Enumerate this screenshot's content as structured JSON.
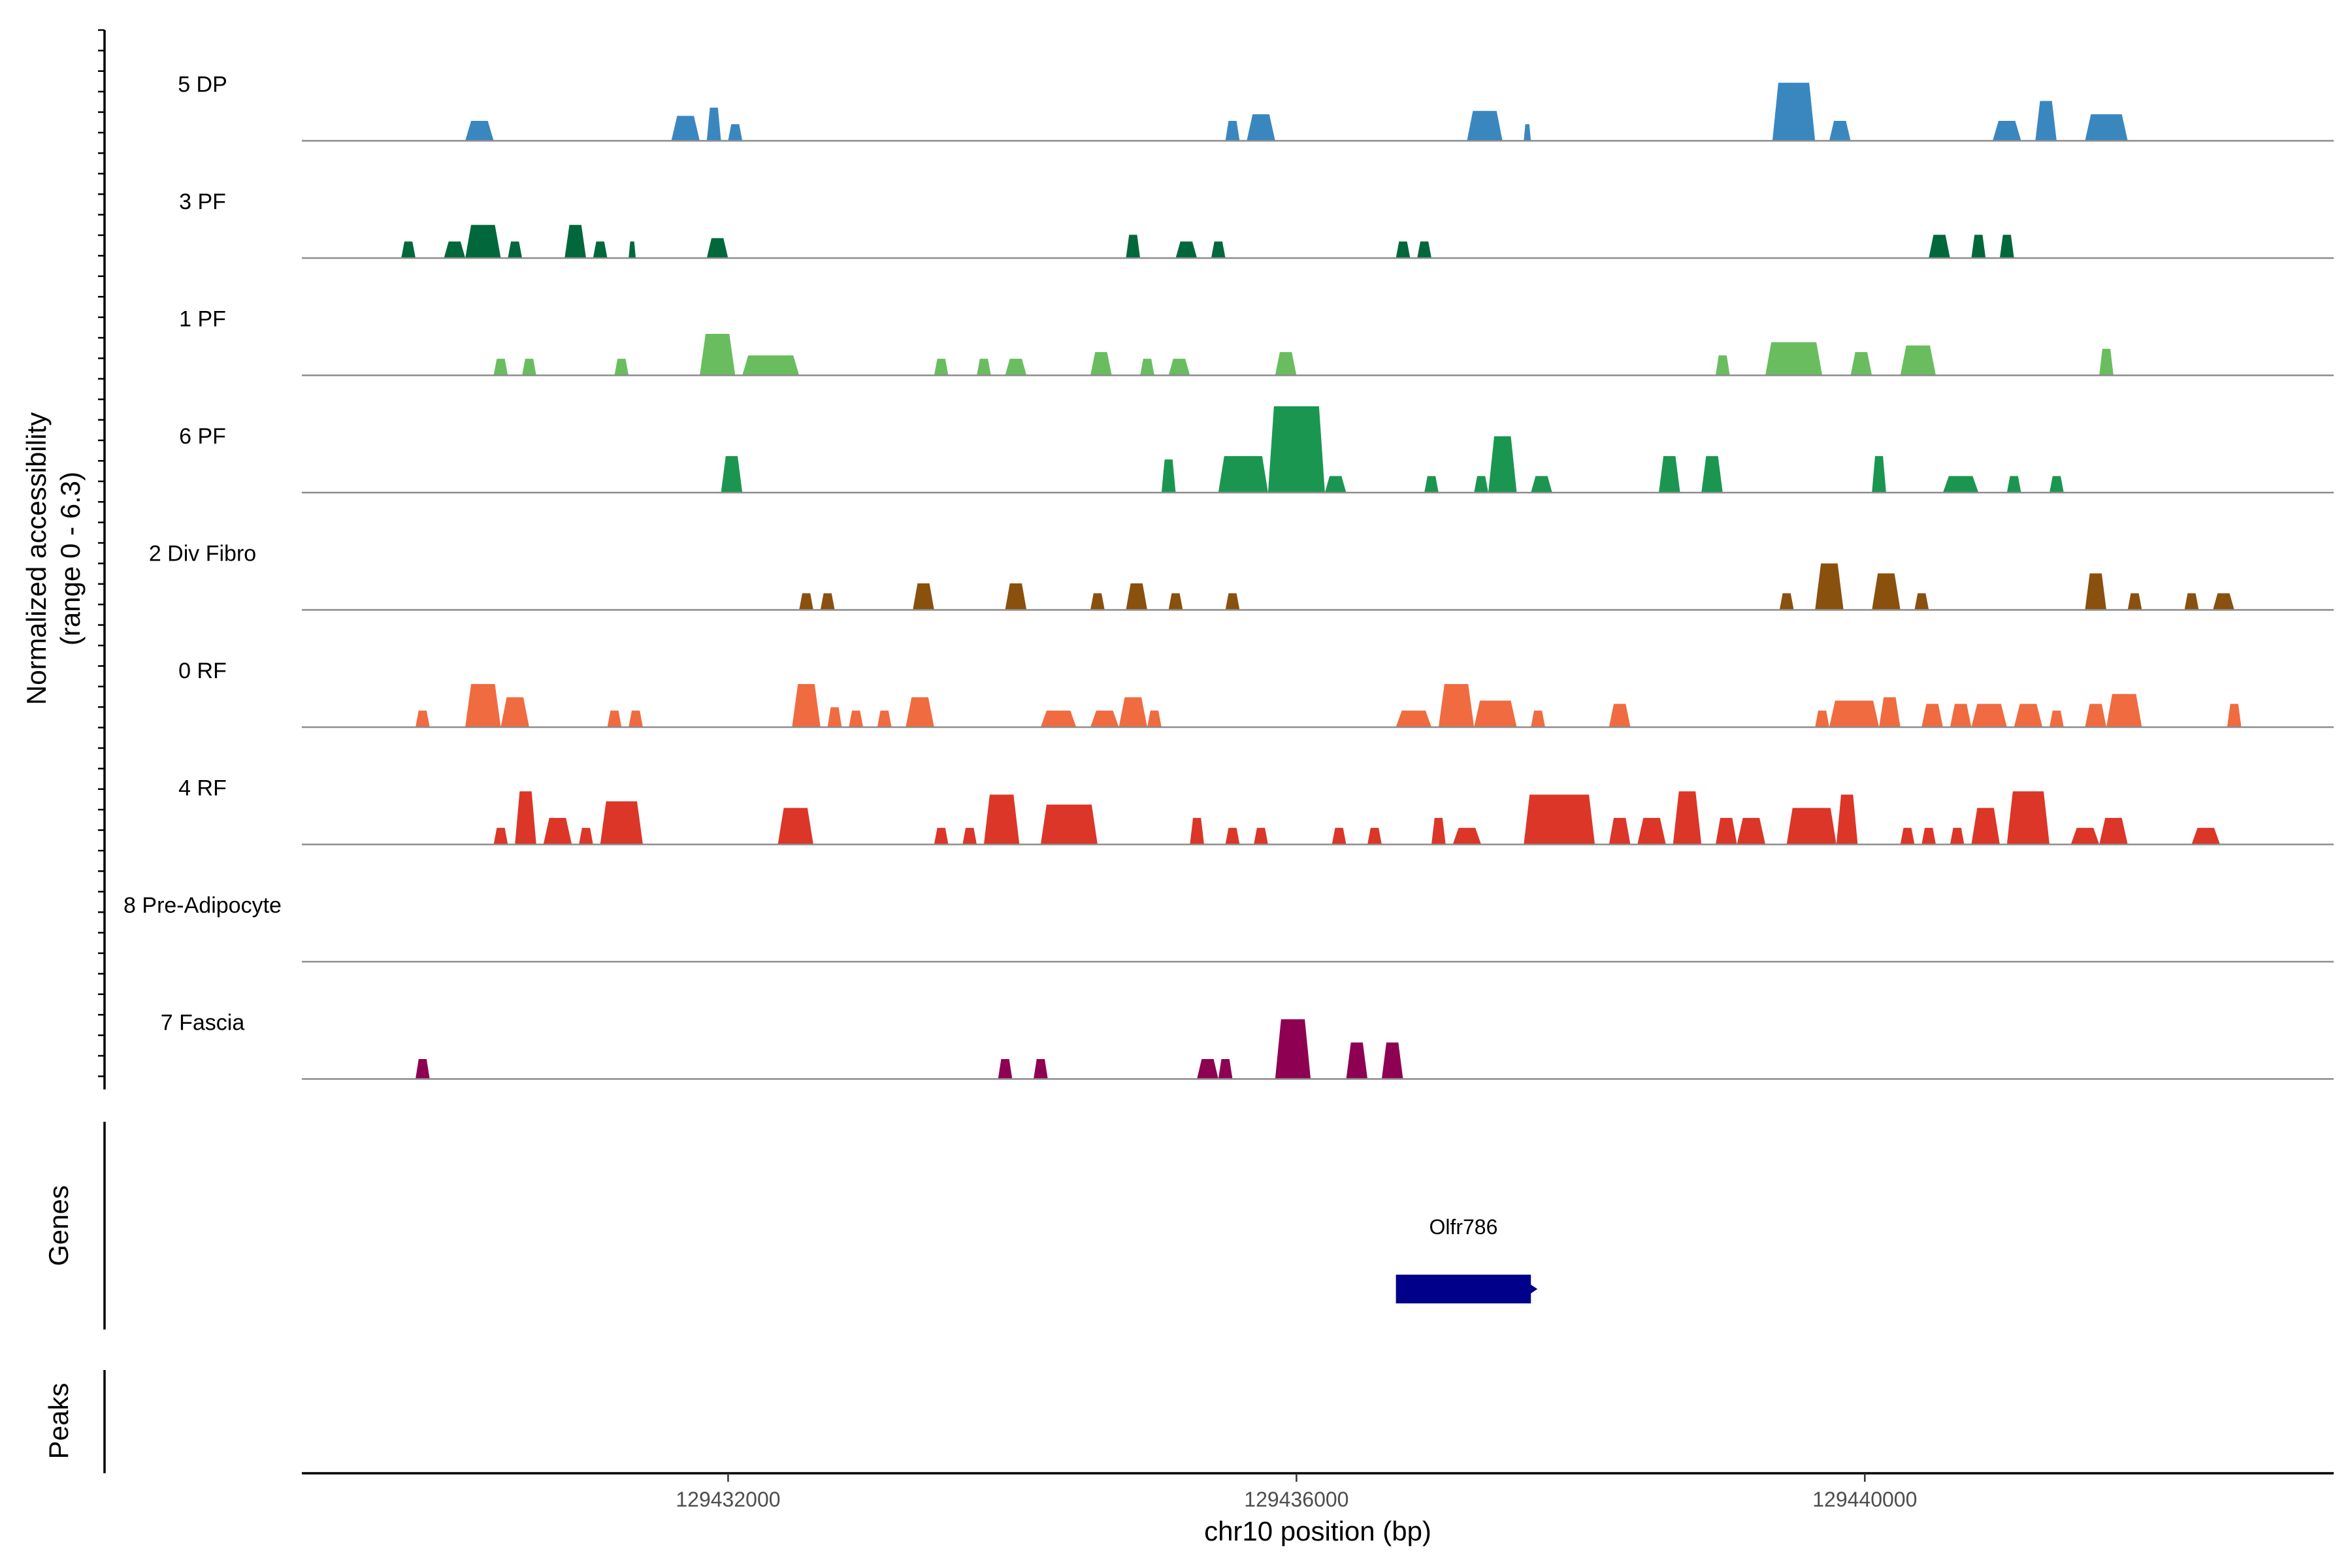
{
  "chart_data": {
    "type": "coverage",
    "title": "",
    "ylabel_line1": "Normalized accessibility",
    "ylabel_line2": "(range 0 - 6.3)",
    "y_range": [
      0,
      6.3
    ],
    "genes_label": "Genes",
    "peaks_label": "Peaks",
    "xlabel": "chr10 position (bp)",
    "x_range": [
      129429000,
      129443300
    ],
    "x_ticks": [
      {
        "value": 129432000,
        "label": "129432000"
      },
      {
        "value": 129436000,
        "label": "129436000"
      },
      {
        "value": 129440000,
        "label": "129440000"
      }
    ],
    "tracks": [
      {
        "name": "5 DP",
        "color": "#3A87C0",
        "peaks": [
          [
            129430150,
            129430350,
            1.2
          ],
          [
            129431600,
            129431800,
            1.5
          ],
          [
            129431850,
            129431950,
            2.0
          ],
          [
            129432000,
            129432100,
            1.0
          ],
          [
            129435500,
            129435600,
            1.2
          ],
          [
            129435650,
            129435850,
            1.6
          ],
          [
            129437200,
            129437450,
            1.8
          ],
          [
            129437600,
            129437650,
            1.0
          ],
          [
            129439350,
            129439650,
            3.5
          ],
          [
            129439750,
            129439900,
            1.2
          ],
          [
            129440900,
            129441100,
            1.2
          ],
          [
            129441200,
            129441350,
            2.4
          ],
          [
            129441550,
            129441850,
            1.6
          ]
        ]
      },
      {
        "name": "3 PF",
        "color": "#00683A",
        "peaks": [
          [
            129429700,
            129429800,
            1.0
          ],
          [
            129430000,
            129430150,
            1.0
          ],
          [
            129430150,
            129430400,
            2.0
          ],
          [
            129430450,
            129430550,
            1.0
          ],
          [
            129430850,
            129431000,
            2.0
          ],
          [
            129431050,
            129431150,
            1.0
          ],
          [
            129431300,
            129431350,
            1.0
          ],
          [
            129431850,
            129432000,
            1.2
          ],
          [
            129434800,
            129434900,
            1.4
          ],
          [
            129435150,
            129435300,
            1.0
          ],
          [
            129435400,
            129435500,
            1.0
          ],
          [
            129436700,
            129436800,
            1.0
          ],
          [
            129436850,
            129436950,
            1.0
          ],
          [
            129440450,
            129440600,
            1.4
          ],
          [
            129440750,
            129440850,
            1.4
          ],
          [
            129440950,
            129441050,
            1.4
          ]
        ]
      },
      {
        "name": "1 PF",
        "color": "#69BD5F",
        "peaks": [
          [
            129430350,
            129430450,
            1.0
          ],
          [
            129430550,
            129430650,
            1.0
          ],
          [
            129431200,
            129431300,
            1.0
          ],
          [
            129431800,
            129432050,
            2.5
          ],
          [
            129432100,
            129432500,
            1.2
          ],
          [
            129433450,
            129433550,
            1.0
          ],
          [
            129433750,
            129433850,
            1.0
          ],
          [
            129433950,
            129434100,
            1.0
          ],
          [
            129434550,
            129434700,
            1.4
          ],
          [
            129434900,
            129435000,
            1.0
          ],
          [
            129435100,
            129435250,
            1.0
          ],
          [
            129435850,
            129436000,
            1.4
          ],
          [
            129438950,
            129439050,
            1.2
          ],
          [
            129439300,
            129439700,
            2.0
          ],
          [
            129439900,
            129440050,
            1.4
          ],
          [
            129440250,
            129440500,
            1.8
          ],
          [
            129441650,
            129441750,
            1.6
          ]
        ]
      },
      {
        "name": "6 PF",
        "color": "#1A9650",
        "peaks": [
          [
            129431950,
            129432100,
            2.2
          ],
          [
            129435050,
            129435150,
            2.0
          ],
          [
            129435450,
            129435800,
            2.2
          ],
          [
            129435800,
            129436200,
            5.2
          ],
          [
            129436200,
            129436350,
            1.0
          ],
          [
            129436900,
            129437000,
            1.0
          ],
          [
            129437250,
            129437350,
            1.0
          ],
          [
            129437350,
            129437550,
            3.4
          ],
          [
            129437650,
            129437800,
            1.0
          ],
          [
            129438550,
            129438700,
            2.2
          ],
          [
            129438850,
            129439000,
            2.2
          ],
          [
            129440050,
            129440150,
            2.2
          ],
          [
            129440550,
            129440800,
            1.0
          ],
          [
            129441000,
            129441100,
            1.0
          ],
          [
            129441300,
            129441400,
            1.0
          ]
        ]
      },
      {
        "name": "2 Div Fibro",
        "color": "#8A500E",
        "peaks": [
          [
            129432500,
            129432600,
            1.0
          ],
          [
            129432650,
            129432750,
            1.0
          ],
          [
            129433300,
            129433450,
            1.6
          ],
          [
            129433950,
            129434100,
            1.6
          ],
          [
            129434550,
            129434650,
            1.0
          ],
          [
            129434800,
            129434950,
            1.6
          ],
          [
            129435100,
            129435200,
            1.0
          ],
          [
            129435500,
            129435600,
            1.0
          ],
          [
            129439400,
            129439500,
            1.0
          ],
          [
            129439650,
            129439850,
            2.8
          ],
          [
            129440050,
            129440250,
            2.2
          ],
          [
            129440350,
            129440450,
            1.0
          ],
          [
            129441550,
            129441700,
            2.2
          ],
          [
            129441850,
            129441950,
            1.0
          ],
          [
            129442250,
            129442350,
            1.0
          ],
          [
            129442450,
            129442600,
            1.0
          ]
        ]
      },
      {
        "name": "0 RF",
        "color": "#F06B40",
        "peaks": [
          [
            129429800,
            129429900,
            1.0
          ],
          [
            129430150,
            129430400,
            2.6
          ],
          [
            129430400,
            129430600,
            1.8
          ],
          [
            129431150,
            129431250,
            1.0
          ],
          [
            129431300,
            129431400,
            1.0
          ],
          [
            129432450,
            129432650,
            2.6
          ],
          [
            129432700,
            129432800,
            1.2
          ],
          [
            129432850,
            129432950,
            1.0
          ],
          [
            129433050,
            129433150,
            1.0
          ],
          [
            129433250,
            129433450,
            1.8
          ],
          [
            129434200,
            129434450,
            1.0
          ],
          [
            129434550,
            129434750,
            1.0
          ],
          [
            129434750,
            129434950,
            1.8
          ],
          [
            129434950,
            129435050,
            1.0
          ],
          [
            129436700,
            129436950,
            1.0
          ],
          [
            129437000,
            129437250,
            2.6
          ],
          [
            129437250,
            129437550,
            1.6
          ],
          [
            129437650,
            129437750,
            1.0
          ],
          [
            129438200,
            129438350,
            1.4
          ],
          [
            129439650,
            129439750,
            1.0
          ],
          [
            129439750,
            129440100,
            1.6
          ],
          [
            129440100,
            129440250,
            1.8
          ],
          [
            129440400,
            129440550,
            1.4
          ],
          [
            129440600,
            129440750,
            1.4
          ],
          [
            129440750,
            129441000,
            1.4
          ],
          [
            129441050,
            129441250,
            1.4
          ],
          [
            129441300,
            129441400,
            1.0
          ],
          [
            129441550,
            129441700,
            1.4
          ],
          [
            129441700,
            129441950,
            2.0
          ],
          [
            129442550,
            129442650,
            1.4
          ]
        ]
      },
      {
        "name": "4 RF",
        "color": "#DB3628",
        "peaks": [
          [
            129430350,
            129430450,
            1.0
          ],
          [
            129430500,
            129430650,
            3.2
          ],
          [
            129430700,
            129430900,
            1.6
          ],
          [
            129430950,
            129431050,
            1.0
          ],
          [
            129431100,
            129431400,
            2.6
          ],
          [
            129432350,
            129432600,
            2.2
          ],
          [
            129433450,
            129433550,
            1.0
          ],
          [
            129433650,
            129433750,
            1.0
          ],
          [
            129433800,
            129434050,
            3.0
          ],
          [
            129434200,
            129434600,
            2.4
          ],
          [
            129435250,
            129435350,
            1.6
          ],
          [
            129435500,
            129435600,
            1.0
          ],
          [
            129435700,
            129435800,
            1.0
          ],
          [
            129436250,
            129436350,
            1.0
          ],
          [
            129436500,
            129436600,
            1.0
          ],
          [
            129436950,
            129437050,
            1.6
          ],
          [
            129437100,
            129437300,
            1.0
          ],
          [
            129437600,
            129438100,
            3.0
          ],
          [
            129438200,
            129438350,
            1.6
          ],
          [
            129438400,
            129438600,
            1.6
          ],
          [
            129438650,
            129438850,
            3.2
          ],
          [
            129438950,
            129439100,
            1.6
          ],
          [
            129439100,
            129439300,
            1.6
          ],
          [
            129439450,
            129439800,
            2.2
          ],
          [
            129439800,
            129439950,
            3.0
          ],
          [
            129440250,
            129440350,
            1.0
          ],
          [
            129440400,
            129440500,
            1.0
          ],
          [
            129440600,
            129440700,
            1.0
          ],
          [
            129440750,
            129440950,
            2.2
          ],
          [
            129441000,
            129441300,
            3.2
          ],
          [
            129441450,
            129441650,
            1.0
          ],
          [
            129441650,
            129441850,
            1.6
          ],
          [
            129442300,
            129442500,
            1.0
          ]
        ]
      },
      {
        "name": "8 Pre-Adipocyte",
        "color": "#6A3D9A",
        "peaks": []
      },
      {
        "name": "7 Fascia",
        "color": "#8E0152",
        "peaks": [
          [
            129429800,
            129429900,
            1.2
          ],
          [
            129433900,
            129434000,
            1.2
          ],
          [
            129434150,
            129434250,
            1.2
          ],
          [
            129435300,
            129435450,
            1.2
          ],
          [
            129435450,
            129435550,
            1.2
          ],
          [
            129435850,
            129436100,
            3.6
          ],
          [
            129436350,
            129436500,
            2.2
          ],
          [
            129436600,
            129436750,
            2.2
          ]
        ]
      }
    ],
    "genes": [
      {
        "name": "Olfr786",
        "start": 129436700,
        "end": 129437650,
        "strand": "+",
        "color": "#00008B"
      }
    ],
    "axis_colors": {
      "baseline": "#8c8c8c",
      "axis": "#000000",
      "tick_text": "#4d4d4d"
    }
  }
}
